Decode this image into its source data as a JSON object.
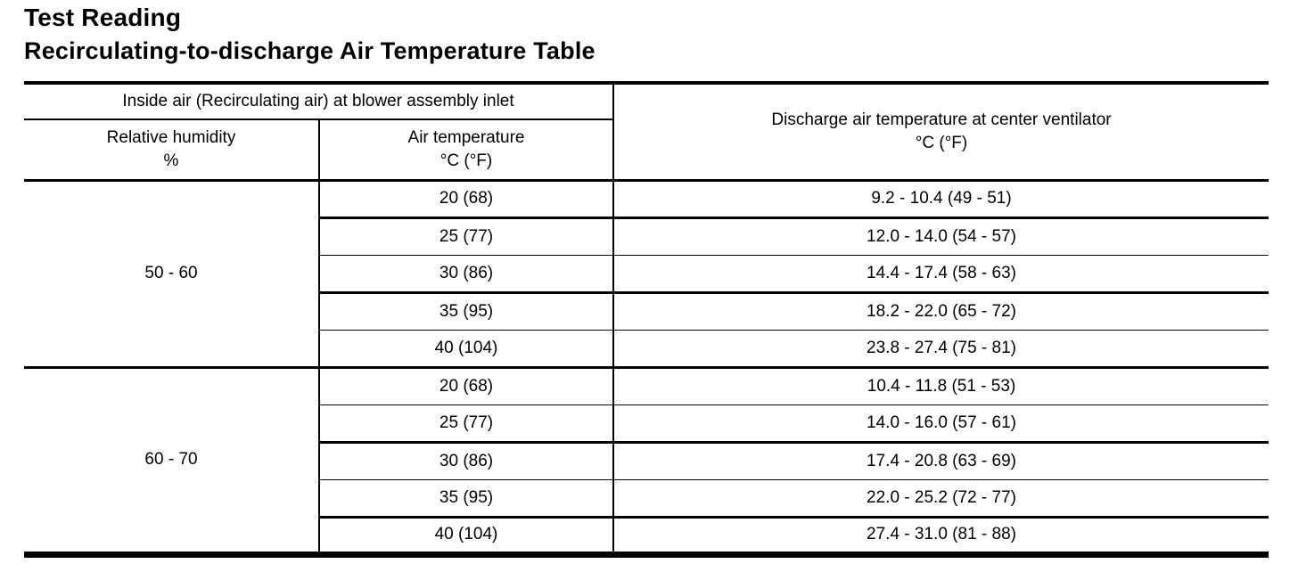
{
  "page": {
    "title": "Test Reading",
    "subtitle": "Recirculating-to-discharge Air Temperature Table"
  },
  "table": {
    "header": {
      "inside_air": "Inside air (Recirculating air) at blower assembly inlet",
      "relative_humidity_label": "Relative humidity",
      "relative_humidity_unit": "%",
      "air_temperature_label": "Air temperature",
      "air_temperature_unit": "°C (°F)",
      "discharge_label": "Discharge air temperature at center ventilator",
      "discharge_unit": "°C (°F)"
    },
    "groups": [
      {
        "relative_humidity": "50 - 60",
        "rows": [
          {
            "air_temp": "20 (68)",
            "discharge": "9.2 - 10.4 (49 - 51)"
          },
          {
            "air_temp": "25 (77)",
            "discharge": "12.0 - 14.0 (54 - 57)"
          },
          {
            "air_temp": "30 (86)",
            "discharge": "14.4 - 17.4 (58 - 63)"
          },
          {
            "air_temp": "35 (95)",
            "discharge": "18.2 - 22.0 (65 - 72)"
          },
          {
            "air_temp": "40 (104)",
            "discharge": "23.8 - 27.4 (75 - 81)"
          }
        ]
      },
      {
        "relative_humidity": "60 - 70",
        "rows": [
          {
            "air_temp": "20 (68)",
            "discharge": "10.4 - 11.8 (51 - 53)"
          },
          {
            "air_temp": "25 (77)",
            "discharge": "14.0 - 16.0 (57 - 61)"
          },
          {
            "air_temp": "30 (86)",
            "discharge": "17.4 - 20.8 (63 - 69)"
          },
          {
            "air_temp": "35 (95)",
            "discharge": "22.0 - 25.2 (72 - 77)"
          },
          {
            "air_temp": "40 (104)",
            "discharge": "27.4 - 31.0 (81 - 88)"
          }
        ]
      }
    ]
  },
  "colors": {
    "text": "#000000",
    "background": "#ffffff",
    "rule": "#000000"
  }
}
